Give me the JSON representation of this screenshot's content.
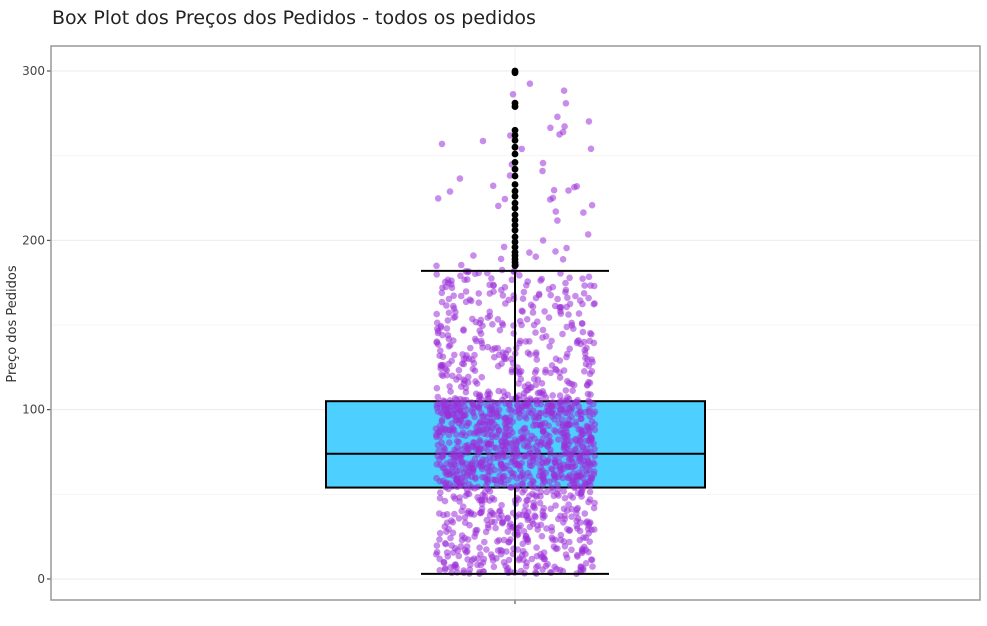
{
  "chart_data": {
    "type": "box",
    "title": "Box Plot dos Preços dos Pedidos - todos os pedidos",
    "xlabel": "",
    "ylabel": "Preço dos Pedidos",
    "ylim": [
      -12,
      315
    ],
    "y_ticks": [
      0,
      100,
      200,
      300
    ],
    "grid": true,
    "legend": "none",
    "box": {
      "lower_whisker": 3,
      "q1": 54,
      "median": 74,
      "q3": 105,
      "upper_whisker": 182
    },
    "outliers": [
      185,
      187,
      189,
      191,
      193,
      196,
      199,
      202,
      206,
      209,
      212,
      215,
      219,
      222,
      226,
      229,
      233,
      238,
      242,
      246,
      251,
      255,
      259,
      262,
      265,
      279,
      281,
      299,
      300
    ],
    "jitter_points": {
      "description_count": 1500,
      "y_min": 3,
      "y_max": 300
    },
    "colors": {
      "box_fill": "#4dd0ff",
      "box_stroke": "#000000",
      "jitter_points": "#9b30d9",
      "outliers": "#000000",
      "grid": "#ebebeb",
      "panel_border": "#999999"
    }
  }
}
